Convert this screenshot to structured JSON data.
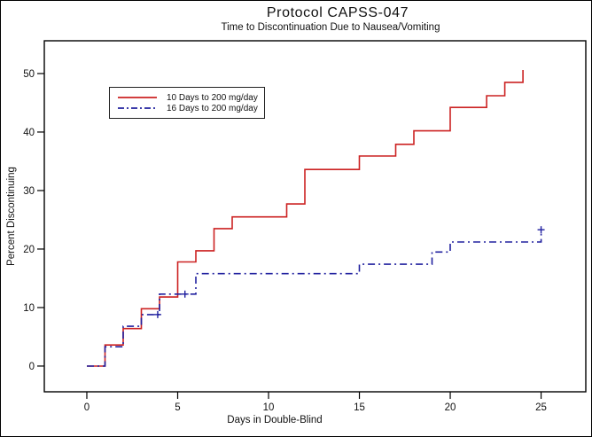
{
  "header": {
    "title": "Protocol CAPSS-047",
    "subtitle": "Time to Discontinuation Due to Nausea/Vomiting"
  },
  "chart_data": {
    "type": "line",
    "variant": "kaplan-meier-step",
    "title": "Protocol CAPSS-047",
    "subtitle": "Time to Discontinuation Due to Nausea/Vomiting",
    "xlabel": "Days in Double-Blind",
    "ylabel": "Percent Discontinuing",
    "x_ticks": [
      0,
      5,
      10,
      15,
      20,
      25
    ],
    "y_ticks": [
      0,
      10,
      20,
      30,
      40,
      50
    ],
    "xlim": [
      -2.34,
      27.46
    ],
    "ylim": [
      -4.4,
      55.6
    ],
    "grid": "off",
    "legend_position": "top-left-inside",
    "frame_color": "#000000",
    "series": [
      {
        "name": "10 Days to 200 mg/day",
        "color": "#cc2222",
        "style": "solid",
        "points": [
          [
            0,
            0
          ],
          [
            1,
            3.6
          ],
          [
            2,
            6.4
          ],
          [
            3,
            9.8
          ],
          [
            4,
            11.8
          ],
          [
            5,
            17.8
          ],
          [
            6,
            19.7
          ],
          [
            7,
            23.5
          ],
          [
            8,
            25.5
          ],
          [
            11,
            27.7
          ],
          [
            12,
            33.6
          ],
          [
            15,
            35.9
          ],
          [
            17,
            37.9
          ],
          [
            18,
            40.2
          ],
          [
            20,
            44.2
          ],
          [
            22,
            46.2
          ],
          [
            23,
            48.5
          ],
          [
            24,
            50.6
          ]
        ],
        "censor_marks": []
      },
      {
        "name": "16 Days to 200 mg/day",
        "color": "#20209f",
        "style": "dash-dot",
        "points": [
          [
            0,
            0
          ],
          [
            1,
            3.3
          ],
          [
            2,
            6.8
          ],
          [
            3,
            8.8
          ],
          [
            4,
            12.3
          ],
          [
            6,
            15.8
          ],
          [
            15,
            17.4
          ],
          [
            19,
            19.5
          ],
          [
            20,
            21.2
          ],
          [
            25,
            23.3
          ]
        ],
        "censor_marks": [
          [
            3.9,
            8.8
          ],
          [
            5.4,
            12.3
          ],
          [
            25,
            23.3
          ]
        ]
      }
    ]
  }
}
